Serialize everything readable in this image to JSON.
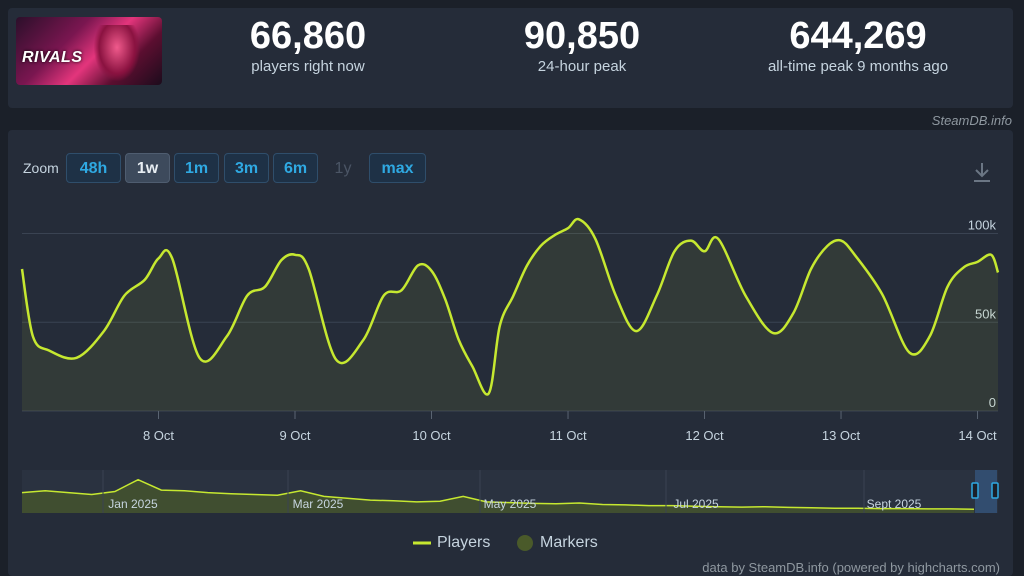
{
  "stats": [
    {
      "value": "66,860",
      "label": "players right now"
    },
    {
      "value": "90,850",
      "label": "24-hour peak"
    },
    {
      "value": "644,269",
      "label": "all-time peak 9 months ago"
    }
  ],
  "logo_text": "RIVALS",
  "brand": "SteamDB.info",
  "zoom": {
    "label": "Zoom",
    "buttons": [
      {
        "label": "48h",
        "state": "normal"
      },
      {
        "label": "1w",
        "state": "active"
      },
      {
        "label": "1m",
        "state": "normal"
      },
      {
        "label": "3m",
        "state": "normal"
      },
      {
        "label": "6m",
        "state": "normal"
      },
      {
        "label": "1y",
        "state": "disabled"
      },
      {
        "label": "max",
        "state": "normal"
      }
    ]
  },
  "legend": {
    "players": "Players",
    "markers": "Markers"
  },
  "footer": "data by SteamDB.info (powered by highcharts.com)",
  "colors": {
    "line": "#c6e830",
    "marker": "#4a5a2a",
    "accent": "#2fa9e2"
  },
  "icons": {
    "download": "download-icon"
  },
  "chart_data": {
    "type": "line",
    "series": [
      {
        "name": "Players",
        "x": [
          7.0,
          7.08,
          7.2,
          7.4,
          7.6,
          7.75,
          7.9,
          8.0,
          8.1,
          8.3,
          8.5,
          8.65,
          8.78,
          8.9,
          9.0,
          9.1,
          9.3,
          9.5,
          9.65,
          9.78,
          9.9,
          10.0,
          10.1,
          10.2,
          10.3,
          10.42,
          10.5,
          10.6,
          10.7,
          10.8,
          10.9,
          11.0,
          11.08,
          11.2,
          11.35,
          11.5,
          11.65,
          11.78,
          11.9,
          12.0,
          12.1,
          12.3,
          12.5,
          12.65,
          12.78,
          12.9,
          13.0,
          13.1,
          13.3,
          13.5,
          13.65,
          13.78,
          13.9,
          14.0,
          14.1,
          14.15
        ],
        "y": [
          80000,
          42000,
          34000,
          30000,
          45000,
          65000,
          74000,
          86000,
          86000,
          30000,
          42000,
          65000,
          70000,
          85000,
          88000,
          80000,
          29000,
          40000,
          65000,
          68000,
          82000,
          79000,
          63000,
          40000,
          25000,
          10000,
          48000,
          65000,
          82000,
          93000,
          99000,
          103000,
          108000,
          97000,
          65000,
          45000,
          65000,
          90000,
          96000,
          90000,
          97000,
          65000,
          44000,
          55000,
          80000,
          93000,
          96000,
          88000,
          66000,
          33000,
          42000,
          70000,
          81000,
          84000,
          88000,
          78000
        ]
      }
    ],
    "x_tick_labels": [
      "8 Oct",
      "9 Oct",
      "10 Oct",
      "11 Oct",
      "12 Oct",
      "13 Oct",
      "14 Oct"
    ],
    "y_tick_labels": [
      "0",
      "50k",
      "100k"
    ],
    "ylim": [
      0,
      120000
    ],
    "grid": true,
    "navigator_labels": [
      "Jan 2025",
      "Mar 2025",
      "May 2025",
      "Jul 2025",
      "Sept 2025"
    ]
  }
}
